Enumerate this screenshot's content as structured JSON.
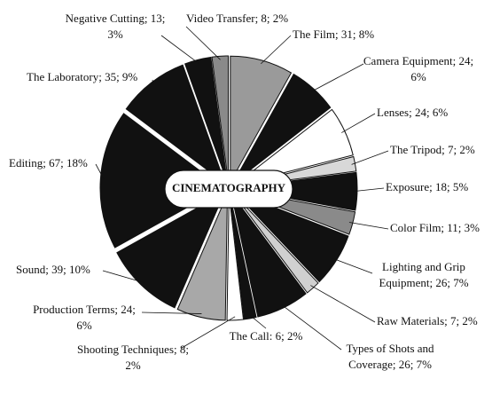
{
  "chart_data": {
    "type": "pie",
    "center_label": "CINEMATOGRAPHY",
    "labels": [
      [
        "The Film; 31; 8%"
      ],
      [
        "Camera Equipment; 24;",
        "6%"
      ],
      [
        "Lenses; 24; 6%"
      ],
      [
        "The Tripod; 7; 2%"
      ],
      [
        "Exposure; 18; 5%"
      ],
      [
        "Color Film; 11; 3%"
      ],
      [
        "Lighting and Grip",
        "Equipment; 26; 7%"
      ],
      [
        "Raw Materials; 7; 2%"
      ],
      [
        "Types of Shots and",
        "Coverage; 26; 7%"
      ],
      [
        "The Call: 6; 2%"
      ],
      [
        "Shooting Techniques; 8;",
        "2%"
      ],
      [
        "Production Terms; 24;",
        "6%"
      ],
      [
        "Sound; 39; 10%"
      ],
      [
        "Editing; 67; 18%"
      ],
      [
        "The Laboratory; 35; 9%"
      ],
      [
        "Negative Cutting; 13;",
        "3%"
      ],
      [
        "Video Transfer; 8; 2%"
      ]
    ],
    "values": [
      31,
      24,
      24,
      7,
      18,
      11,
      26,
      7,
      26,
      6,
      8,
      24,
      39,
      67,
      35,
      13,
      8
    ],
    "colors": [
      "#9a9a9a",
      "#111111",
      "#ffffff",
      "#d8d8d8",
      "#111111",
      "#8a8a8a",
      "#111111",
      "#d0d0d0",
      "#111111",
      "#111111",
      "#ffffff",
      "#a8a8a8",
      "#111111",
      "#111111",
      "#111111",
      "#111111",
      "#8a8a8a"
    ]
  }
}
